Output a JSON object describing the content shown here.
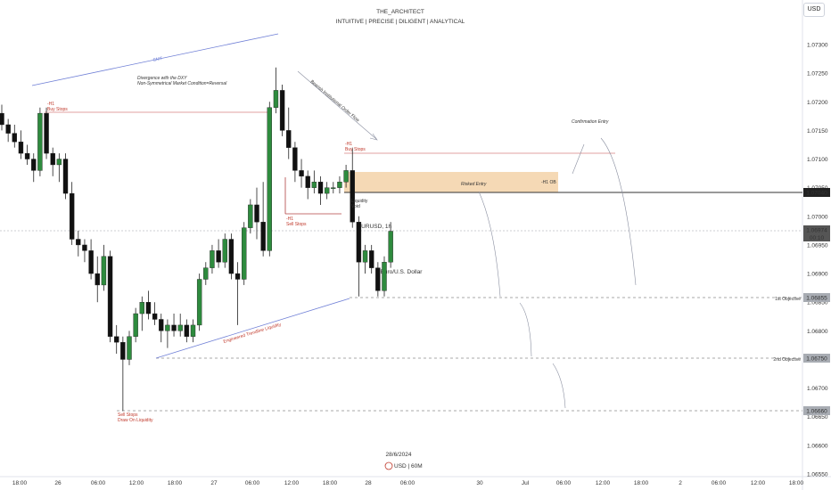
{
  "header": {
    "author": "THE_ARCHITECT",
    "tagline": "INTUITIVE | PRECISE | DILIGENT | ANALYTICAL",
    "currency_button": "USD"
  },
  "watermark": {
    "symbol": "EURUSD, 1h",
    "name": "Euro/U.S. Dollar"
  },
  "footer": {
    "date": "28/6/2024",
    "logo_text": "USD | 60M"
  },
  "colors": {
    "up": "#2e8b3e",
    "down": "#111111",
    "resistance": "#d98080",
    "liquidity": "#6f7fd6",
    "ob_zone": "#f5d9b5",
    "hline": "#555555"
  },
  "chart_data": {
    "type": "candlestick",
    "title": "THE_ARCHITECT",
    "ylim": [
      1.0655,
      1.0735
    ],
    "y_ticks": [
      "1.07300",
      "1.07250",
      "1.07200",
      "1.07150",
      "1.07100",
      "1.07050",
      "1.07000",
      "1.06950",
      "1.06900",
      "1.06850",
      "1.06800",
      "1.06750",
      "1.06700",
      "1.06650",
      "1.06600",
      "1.06550"
    ],
    "x_ticks": [
      "18:00",
      "26",
      "06:00",
      "12:00",
      "18:00",
      "27",
      "06:00",
      "12:00",
      "18:00",
      "28",
      "06:00",
      "30",
      "Jul",
      "06:00",
      "12:00",
      "18:00",
      "2",
      "06:00",
      "12:00",
      "18:00"
    ],
    "ohlc": [
      [
        1.0718,
        1.07195,
        1.0715,
        1.0716
      ],
      [
        1.0716,
        1.0717,
        1.0713,
        1.07145
      ],
      [
        1.07145,
        1.0716,
        1.0712,
        1.0713
      ],
      [
        1.0713,
        1.0715,
        1.071,
        1.0711
      ],
      [
        1.0711,
        1.07125,
        1.0709,
        1.071
      ],
      [
        1.071,
        1.0711,
        1.0706,
        1.0708
      ],
      [
        1.0708,
        1.0719,
        1.0707,
        1.0718
      ],
      [
        1.0718,
        1.0719,
        1.071,
        1.0711
      ],
      [
        1.0711,
        1.0712,
        1.0707,
        1.0709
      ],
      [
        1.0709,
        1.0711,
        1.0706,
        1.071
      ],
      [
        1.071,
        1.0711,
        1.0703,
        1.0704
      ],
      [
        1.0704,
        1.0706,
        1.0695,
        1.0696
      ],
      [
        1.0696,
        1.06975,
        1.0693,
        1.0695
      ],
      [
        1.0695,
        1.0696,
        1.0692,
        1.0694
      ],
      [
        1.0694,
        1.0696,
        1.0689,
        1.069
      ],
      [
        1.069,
        1.0693,
        1.0685,
        1.0688
      ],
      [
        1.0688,
        1.0695,
        1.0687,
        1.0693
      ],
      [
        1.0693,
        1.0694,
        1.0678,
        1.0679
      ],
      [
        1.0679,
        1.0681,
        1.0676,
        1.0678
      ],
      [
        1.0678,
        1.0679,
        1.0666,
        1.0675
      ],
      [
        1.0675,
        1.068,
        1.0674,
        1.0679
      ],
      [
        1.0679,
        1.0684,
        1.0678,
        1.0683
      ],
      [
        1.0683,
        1.0686,
        1.068,
        1.0685
      ],
      [
        1.0685,
        1.0687,
        1.0682,
        1.0683
      ],
      [
        1.0683,
        1.0685,
        1.0681,
        1.0682
      ],
      [
        1.0682,
        1.0683,
        1.0678,
        1.068
      ],
      [
        1.068,
        1.0682,
        1.0677,
        1.0681
      ],
      [
        1.0681,
        1.0683,
        1.0679,
        1.068
      ],
      [
        1.068,
        1.0683,
        1.0679,
        1.0681
      ],
      [
        1.0681,
        1.0682,
        1.0678,
        1.0679
      ],
      [
        1.0679,
        1.0682,
        1.0678,
        1.0681
      ],
      [
        1.0681,
        1.069,
        1.068,
        1.0689
      ],
      [
        1.0689,
        1.0692,
        1.0688,
        1.0691
      ],
      [
        1.0691,
        1.0695,
        1.069,
        1.0694
      ],
      [
        1.0694,
        1.0696,
        1.0691,
        1.0692
      ],
      [
        1.0692,
        1.0697,
        1.0691,
        1.0696
      ],
      [
        1.0696,
        1.0697,
        1.0689,
        1.069
      ],
      [
        1.069,
        1.0692,
        1.0681,
        1.0689
      ],
      [
        1.0689,
        1.0699,
        1.0688,
        1.0698
      ],
      [
        1.0698,
        1.0703,
        1.0697,
        1.0702
      ],
      [
        1.0702,
        1.0705,
        1.0696,
        1.0699
      ],
      [
        1.0699,
        1.0706,
        1.0693,
        1.0694
      ],
      [
        1.0694,
        1.072,
        1.0693,
        1.0719
      ],
      [
        1.0719,
        1.0726,
        1.0718,
        1.0722
      ],
      [
        1.0722,
        1.0723,
        1.0714,
        1.0715
      ],
      [
        1.0715,
        1.0719,
        1.071,
        1.0712
      ],
      [
        1.0712,
        1.0713,
        1.0706,
        1.0708
      ],
      [
        1.0708,
        1.071,
        1.0705,
        1.0707
      ],
      [
        1.0707,
        1.0708,
        1.0703,
        1.0705
      ],
      [
        1.0705,
        1.0708,
        1.0704,
        1.0706
      ],
      [
        1.0706,
        1.0707,
        1.0702,
        1.0704
      ],
      [
        1.0704,
        1.0706,
        1.0703,
        1.0705
      ],
      [
        1.0705,
        1.0706,
        1.0704,
        1.0705
      ],
      [
        1.0705,
        1.0707,
        1.0704,
        1.0706
      ],
      [
        1.0706,
        1.0709,
        1.0705,
        1.0708
      ],
      [
        1.0708,
        1.0712,
        1.0698,
        1.0699
      ],
      [
        1.0699,
        1.07,
        1.0686,
        1.0692
      ],
      [
        1.0692,
        1.0695,
        1.069,
        1.0694
      ],
      [
        1.0694,
        1.0695,
        1.069,
        1.0691
      ],
      [
        1.0691,
        1.0692,
        1.0686,
        1.0687
      ],
      [
        1.0687,
        1.0693,
        1.0686,
        1.0692
      ],
      [
        1.0692,
        1.0699,
        1.0691,
        1.06974
      ]
    ],
    "levels": [
      {
        "label": "1st Objective",
        "price": "1.06855"
      },
      {
        "label": "2nd Objective",
        "price": "1.06750"
      },
      {
        "label": "",
        "price": "1.06660"
      }
    ],
    "markers": {
      "last_price": "1.06974",
      "countdown": "00:10",
      "hline_price": "1.07040"
    },
    "annotations": {
      "smt": "SMT",
      "divergence_1": "Divergence with the DXY",
      "divergence_2": "Non-Symmetrical Market Condition=Reversal",
      "buy_stops_left_1": "-H1",
      "buy_stops_left_2": "Buy Stops",
      "bearish_flow": "Bearish Institutional Order Flow",
      "buy_stops_right_1": "-H1",
      "buy_stops_right_2": "Buy Stops",
      "risked_entry": "Risked Entry",
      "h1_ob": "-H1 OB",
      "confirmation_entry": "Confirmation Entry",
      "liquidity_void_1": "Liquidity",
      "liquidity_void_2": "Void",
      "sell_stops_mid_1": "-H1",
      "sell_stops_mid_2": "Sell Stops",
      "trendline_liquidity": "Engineered Trendline Liquidity",
      "sell_stops_low_1": "Sell Stops",
      "sell_stops_low_2": "Draw On Liquidity"
    }
  }
}
